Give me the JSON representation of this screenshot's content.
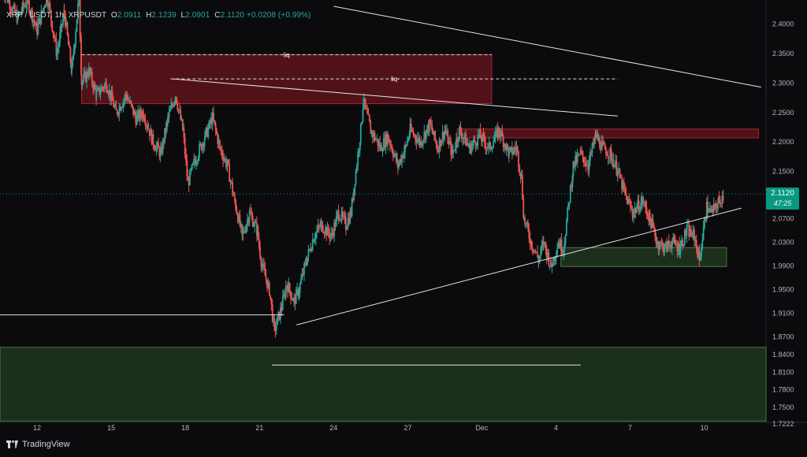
{
  "header": {
    "symbol": "XRP / USDT, 1h, XRPUSDT",
    "open_label": "O",
    "open": "2.0911",
    "high_label": "H",
    "high": "2.1239",
    "low_label": "L",
    "low": "2.0901",
    "close_label": "C",
    "close": "2.1120",
    "change": "+0.0208 (+0.99%)"
  },
  "price_badge": {
    "price": "2.1120",
    "countdown": "47:25",
    "color": "#089981"
  },
  "branding": {
    "name": "TradingView"
  },
  "colors": {
    "background": "#0b0b0d",
    "up": "#26a69a",
    "down": "#ef5350",
    "supply_zone": "#8b1a22",
    "demand_zone": "#2e5a2e"
  },
  "chart_data": {
    "type": "candlestick",
    "symbol": "XRPUSDT",
    "timeframe": "1h",
    "ylim": [
      1.7222,
      2.43
    ],
    "y_ticks": [
      "2.4000",
      "2.3500",
      "2.3000",
      "2.2500",
      "2.2000",
      "2.1500",
      "2.1000",
      "2.0700",
      "2.0300",
      "1.9900",
      "1.9500",
      "1.9100",
      "1.8700",
      "1.8400",
      "1.8100",
      "1.7800",
      "1.7500",
      "1.7222"
    ],
    "x_ticks": [
      "12",
      "15",
      "18",
      "21",
      "24",
      "27",
      "Dec",
      "4",
      "7",
      "10"
    ],
    "x_range_days": [
      10.5,
      41.5
    ],
    "price_path": [
      [
        10.6,
        2.46
      ],
      [
        11.2,
        2.41
      ],
      [
        11.6,
        2.44
      ],
      [
        12.0,
        2.39
      ],
      [
        12.4,
        2.45
      ],
      [
        12.8,
        2.35
      ],
      [
        13.1,
        2.42
      ],
      [
        13.4,
        2.32
      ],
      [
        13.7,
        2.45
      ],
      [
        13.8,
        2.3
      ],
      [
        14.1,
        2.32
      ],
      [
        14.4,
        2.28
      ],
      [
        14.8,
        2.3
      ],
      [
        15.2,
        2.25
      ],
      [
        15.6,
        2.28
      ],
      [
        16.0,
        2.24
      ],
      [
        16.3,
        2.25
      ],
      [
        16.7,
        2.2
      ],
      [
        17.0,
        2.18
      ],
      [
        17.3,
        2.24
      ],
      [
        17.6,
        2.28
      ],
      [
        17.9,
        2.22
      ],
      [
        18.1,
        2.13
      ],
      [
        18.4,
        2.17
      ],
      [
        18.8,
        2.21
      ],
      [
        19.1,
        2.24
      ],
      [
        19.4,
        2.19
      ],
      [
        19.7,
        2.16
      ],
      [
        20.0,
        2.1
      ],
      [
        20.3,
        2.04
      ],
      [
        20.6,
        2.08
      ],
      [
        20.9,
        2.05
      ],
      [
        21.1,
        1.99
      ],
      [
        21.4,
        1.95
      ],
      [
        21.6,
        1.88
      ],
      [
        21.9,
        1.92
      ],
      [
        22.1,
        1.96
      ],
      [
        22.4,
        1.93
      ],
      [
        22.6,
        1.95
      ],
      [
        22.9,
        2.0
      ],
      [
        23.2,
        2.04
      ],
      [
        23.5,
        2.06
      ],
      [
        23.9,
        2.04
      ],
      [
        24.2,
        2.08
      ],
      [
        24.5,
        2.06
      ],
      [
        24.7,
        2.08
      ],
      [
        24.9,
        2.15
      ],
      [
        25.1,
        2.22
      ],
      [
        25.2,
        2.27
      ],
      [
        25.5,
        2.22
      ],
      [
        25.9,
        2.19
      ],
      [
        26.2,
        2.21
      ],
      [
        26.6,
        2.16
      ],
      [
        26.9,
        2.19
      ],
      [
        27.1,
        2.22
      ],
      [
        27.5,
        2.2
      ],
      [
        27.9,
        2.23
      ],
      [
        28.2,
        2.19
      ],
      [
        28.5,
        2.22
      ],
      [
        28.8,
        2.18
      ],
      [
        29.1,
        2.22
      ],
      [
        29.5,
        2.19
      ],
      [
        29.9,
        2.21
      ],
      [
        30.3,
        2.19
      ],
      [
        30.7,
        2.22
      ],
      [
        31.1,
        2.18
      ],
      [
        31.4,
        2.19
      ],
      [
        31.6,
        2.14
      ],
      [
        31.7,
        2.07
      ],
      [
        32.0,
        2.03
      ],
      [
        32.3,
        2.0
      ],
      [
        32.5,
        2.03
      ],
      [
        32.8,
        1.99
      ],
      [
        33.1,
        2.03
      ],
      [
        33.3,
        2.02
      ],
      [
        33.5,
        2.09
      ],
      [
        33.7,
        2.16
      ],
      [
        34.0,
        2.18
      ],
      [
        34.3,
        2.16
      ],
      [
        34.6,
        2.21
      ],
      [
        34.9,
        2.19
      ],
      [
        35.2,
        2.18
      ],
      [
        35.5,
        2.15
      ],
      [
        35.8,
        2.11
      ],
      [
        36.1,
        2.08
      ],
      [
        36.5,
        2.1
      ],
      [
        36.8,
        2.07
      ],
      [
        37.1,
        2.03
      ],
      [
        37.4,
        2.02
      ],
      [
        37.7,
        2.03
      ],
      [
        38.0,
        2.02
      ],
      [
        38.3,
        2.05
      ],
      [
        38.6,
        2.04
      ],
      [
        38.8,
        2.0
      ],
      [
        39.1,
        2.09
      ],
      [
        39.3,
        2.08
      ],
      [
        39.6,
        2.1
      ],
      [
        39.8,
        2.112
      ]
    ],
    "current_price": 2.112,
    "annotations": [
      {
        "type": "zone",
        "role": "supply",
        "x0": 13.8,
        "x1": 30.4,
        "y0": 2.265,
        "y1": 2.348,
        "label": "liq"
      },
      {
        "type": "zone",
        "role": "supply",
        "x0": 29.0,
        "x1": 41.2,
        "y0": 2.207,
        "y1": 2.222
      },
      {
        "type": "zone",
        "role": "demand",
        "x0": 33.2,
        "x1": 39.9,
        "y0": 1.989,
        "y1": 2.021
      },
      {
        "type": "zone",
        "role": "demand",
        "x0": 10.5,
        "x1": 41.5,
        "y0": 1.727,
        "y1": 1.852
      },
      {
        "type": "level",
        "x0": 13.8,
        "x1": 30.4,
        "y": 2.348,
        "style": "dashed"
      },
      {
        "type": "level",
        "x0": 17.4,
        "x1": 35.5,
        "y": 2.307,
        "style": "dashed",
        "label": "liq"
      },
      {
        "type": "level",
        "x0": 10.5,
        "x1": 22.0,
        "y": 1.907,
        "style": "solid"
      },
      {
        "type": "level",
        "x0": 21.5,
        "x1": 34.0,
        "y": 1.822,
        "style": "solid"
      },
      {
        "type": "trendline",
        "x0": 17.5,
        "y0": 2.307,
        "x1": 35.5,
        "y1": 2.244
      },
      {
        "type": "trendline",
        "x0": 22.5,
        "y0": 1.89,
        "x1": 40.5,
        "y1": 2.088
      },
      {
        "type": "trendline",
        "x0": 24.0,
        "y0": 2.43,
        "x1": 41.3,
        "y1": 2.293
      }
    ]
  }
}
